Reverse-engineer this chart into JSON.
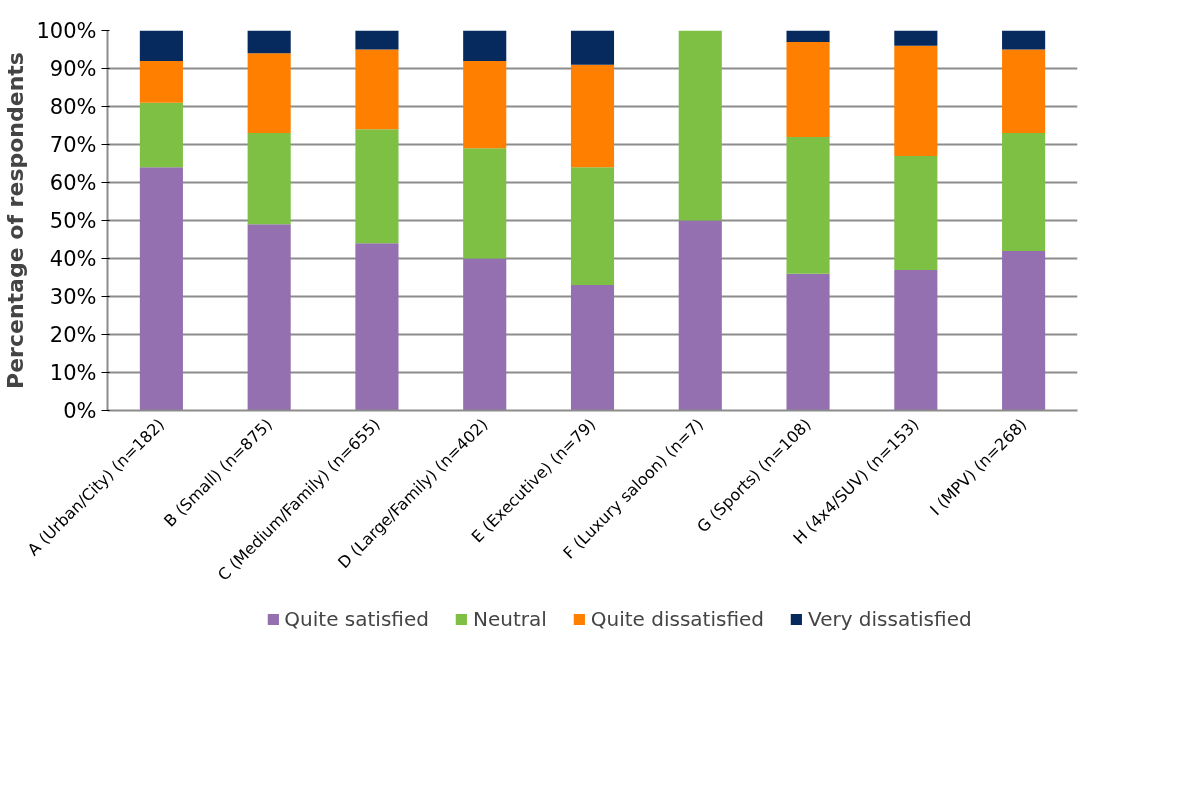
{
  "chart_data": {
    "type": "bar",
    "stacked": true,
    "ylabel": "Percentage of respondents",
    "categories": [
      "A (Urban/City) (n=182)",
      "B (Small) (n=875)",
      "C (Medium/Family) (n=655)",
      "D (Large/Family) (n=402)",
      "E (Executive) (n=79)",
      "F (Luxury saloon) (n=7)",
      "G (Sports) (n=108)",
      "H (4x4/SUV) (n=153)",
      "I (MPV) (n=268)"
    ],
    "series": [
      {
        "name": "Quite satisfied",
        "color": "#9470b0",
        "values": [
          64,
          49,
          44,
          40,
          33,
          50,
          36,
          37,
          42
        ]
      },
      {
        "name": "Neutral",
        "color": "#7dc044",
        "values": [
          17,
          24,
          30,
          29,
          31,
          50,
          36,
          30,
          31
        ]
      },
      {
        "name": "Quite dissatisfied",
        "color": "#ff7f00",
        "values": [
          11,
          21,
          21,
          23,
          27,
          0,
          25,
          29,
          22
        ]
      },
      {
        "name": "Very dissatisfied",
        "color": "#06295e",
        "values": [
          8,
          6,
          5,
          8,
          9,
          0,
          3,
          4,
          5
        ]
      }
    ],
    "ylim": [
      0,
      100
    ],
    "yticks": [
      {
        "value": 0,
        "label": "0%"
      },
      {
        "value": 10,
        "label": "10%"
      },
      {
        "value": 20,
        "label": "20%"
      },
      {
        "value": 30,
        "label": "30%"
      },
      {
        "value": 40,
        "label": "40%"
      },
      {
        "value": 50,
        "label": "50%"
      },
      {
        "value": 60,
        "label": "60%"
      },
      {
        "value": 70,
        "label": "70%"
      },
      {
        "value": 80,
        "label": "80%"
      },
      {
        "value": 90,
        "label": "90%"
      },
      {
        "value": 100,
        "label": "100%"
      }
    ],
    "grid": "y",
    "legend": "bottom"
  }
}
